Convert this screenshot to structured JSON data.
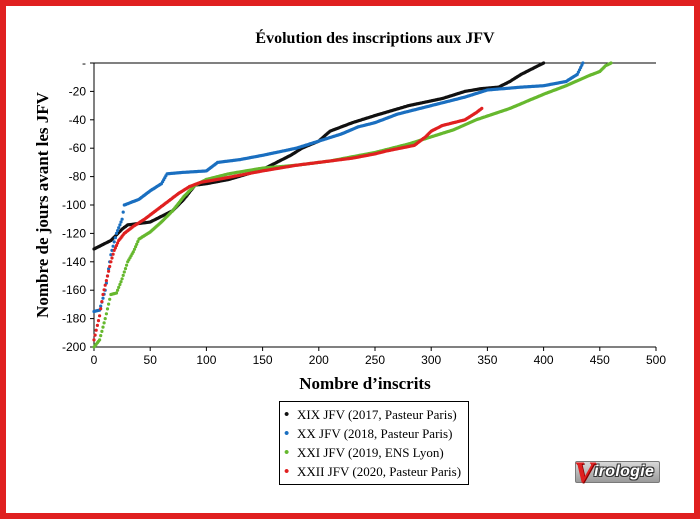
{
  "chart_data": {
    "type": "scatter",
    "title": "Évolution des inscriptions aux JFV",
    "xlabel": "Nombre d’inscrits",
    "ylabel": "Nombre de jours avant les JFV",
    "xlim": [
      0,
      500
    ],
    "ylim": [
      -200,
      0
    ],
    "x_ticks": [
      "0",
      "50",
      "100",
      "150",
      "200",
      "250",
      "300",
      "350",
      "400",
      "450",
      "500"
    ],
    "y_ticks": [
      "-",
      "-20",
      "-40",
      "-60",
      "-80",
      "-100",
      "-120",
      "-140",
      "-160",
      "-180",
      "-200"
    ],
    "grid": false,
    "legend_position": "bottom-center",
    "series": [
      {
        "name": "XIX JFV (2017, Pasteur Paris)",
        "color": "#111111",
        "points": [
          [
            0,
            -131
          ],
          [
            5,
            -129
          ],
          [
            10,
            -127
          ],
          [
            15,
            -125
          ],
          [
            20,
            -121
          ],
          [
            25,
            -117
          ],
          [
            30,
            -114
          ],
          [
            50,
            -112
          ],
          [
            70,
            -104
          ],
          [
            80,
            -96
          ],
          [
            90,
            -86
          ],
          [
            100,
            -85
          ],
          [
            120,
            -82
          ],
          [
            150,
            -75
          ],
          [
            175,
            -65
          ],
          [
            185,
            -60
          ],
          [
            200,
            -55
          ],
          [
            210,
            -48
          ],
          [
            230,
            -42
          ],
          [
            250,
            -37
          ],
          [
            280,
            -30
          ],
          [
            310,
            -25
          ],
          [
            330,
            -20
          ],
          [
            345,
            -18
          ],
          [
            360,
            -17
          ],
          [
            370,
            -13
          ],
          [
            380,
            -8
          ],
          [
            390,
            -4
          ],
          [
            400,
            0
          ]
        ]
      },
      {
        "name": "XX JFV (2018, Pasteur Paris)",
        "color": "#1a6fc0",
        "points": [
          [
            0,
            -175
          ],
          [
            5,
            -174
          ],
          [
            10,
            -160
          ],
          [
            12,
            -150
          ],
          [
            15,
            -135
          ],
          [
            20,
            -120
          ],
          [
            25,
            -110
          ],
          [
            27,
            -100
          ],
          [
            40,
            -96
          ],
          [
            50,
            -90
          ],
          [
            60,
            -85
          ],
          [
            65,
            -78
          ],
          [
            80,
            -77
          ],
          [
            100,
            -76
          ],
          [
            110,
            -70
          ],
          [
            130,
            -68
          ],
          [
            150,
            -65
          ],
          [
            180,
            -60
          ],
          [
            200,
            -55
          ],
          [
            220,
            -50
          ],
          [
            235,
            -45
          ],
          [
            250,
            -42
          ],
          [
            270,
            -36
          ],
          [
            300,
            -30
          ],
          [
            330,
            -24
          ],
          [
            350,
            -19
          ],
          [
            380,
            -17
          ],
          [
            400,
            -16
          ],
          [
            420,
            -13
          ],
          [
            430,
            -8
          ],
          [
            435,
            0
          ]
        ]
      },
      {
        "name": "XXI JFV (2019, ENS Lyon)",
        "color": "#66b82e",
        "points": [
          [
            0,
            -200
          ],
          [
            5,
            -195
          ],
          [
            10,
            -180
          ],
          [
            15,
            -163
          ],
          [
            20,
            -162
          ],
          [
            25,
            -152
          ],
          [
            30,
            -140
          ],
          [
            35,
            -133
          ],
          [
            40,
            -124
          ],
          [
            50,
            -119
          ],
          [
            60,
            -112
          ],
          [
            70,
            -104
          ],
          [
            80,
            -94
          ],
          [
            90,
            -86
          ],
          [
            100,
            -82
          ],
          [
            120,
            -78
          ],
          [
            150,
            -74
          ],
          [
            180,
            -72
          ],
          [
            210,
            -69
          ],
          [
            250,
            -63
          ],
          [
            280,
            -57
          ],
          [
            300,
            -52
          ],
          [
            320,
            -47
          ],
          [
            340,
            -40
          ],
          [
            370,
            -32
          ],
          [
            400,
            -22
          ],
          [
            420,
            -16
          ],
          [
            440,
            -9
          ],
          [
            450,
            -6
          ],
          [
            455,
            -2
          ],
          [
            460,
            0
          ]
        ]
      },
      {
        "name": "XXII JFV (2020, Pasteur Paris)",
        "color": "#e02020",
        "points": [
          [
            0,
            -195
          ],
          [
            5,
            -178
          ],
          [
            8,
            -163
          ],
          [
            12,
            -150
          ],
          [
            15,
            -140
          ],
          [
            18,
            -132
          ],
          [
            22,
            -125
          ],
          [
            27,
            -120
          ],
          [
            35,
            -115
          ],
          [
            45,
            -110
          ],
          [
            55,
            -104
          ],
          [
            65,
            -98
          ],
          [
            75,
            -92
          ],
          [
            85,
            -87
          ],
          [
            95,
            -84
          ],
          [
            110,
            -82
          ],
          [
            130,
            -79
          ],
          [
            150,
            -76
          ],
          [
            180,
            -72
          ],
          [
            200,
            -70
          ],
          [
            230,
            -67
          ],
          [
            250,
            -64
          ],
          [
            260,
            -62
          ],
          [
            285,
            -58
          ],
          [
            295,
            -52
          ],
          [
            300,
            -48
          ],
          [
            310,
            -44
          ],
          [
            330,
            -40
          ],
          [
            340,
            -35
          ],
          [
            345,
            -32
          ]
        ]
      }
    ]
  },
  "legend_entries": [
    "XIX JFV (2017, Pasteur Paris)",
    "XX JFV (2018, Pasteur Paris)",
    "XXI JFV (2019, ENS Lyon)",
    "XXII JFV (2020, Pasteur Paris)"
  ],
  "logo": {
    "letter": "V",
    "text": "irologie"
  }
}
